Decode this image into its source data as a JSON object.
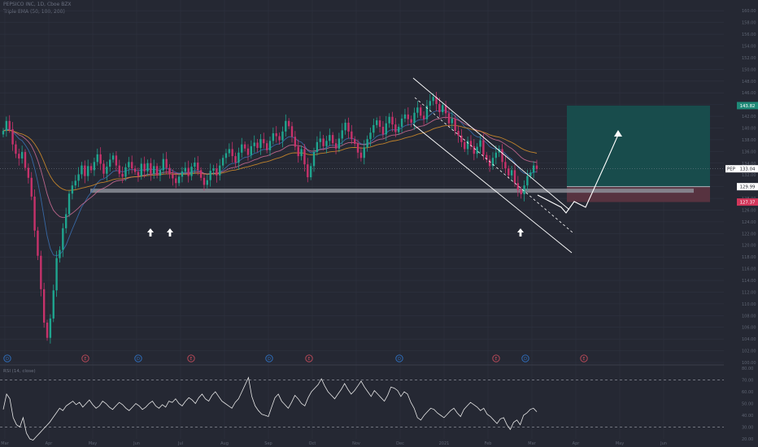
{
  "header": {
    "title": "PEPSICO INC, 1D, Cboe BZX",
    "indicators": "Triple EMA (50, 100, 200)"
  },
  "colors": {
    "background": "#252833",
    "grid": "#2e3240",
    "up": "#1fa58f",
    "down": "#c7326b",
    "target_zone": "#174e4e",
    "stop_zone": "#5a3441",
    "support_band": "#8c8f99",
    "trend_lines": "#ffffff",
    "ema_50": "#3a6fb0",
    "ema_100": "#c96a92",
    "ema_200": "#d08c2a",
    "rsi_line": "#e8e8e8"
  },
  "price_labels": {
    "symbol": "PEP",
    "current": "133.04",
    "entry": "129.99",
    "target": "143.82",
    "stop": "127.37"
  },
  "chart_data": [
    {
      "type": "candlestick",
      "ylim": [
        100,
        161
      ],
      "y_ticks": [
        "160.00",
        "158.00",
        "156.00",
        "154.00",
        "152.00",
        "150.00",
        "148.00",
        "146.00",
        "144.00",
        "142.00",
        "140.00",
        "138.00",
        "136.00",
        "134.00",
        "132.00",
        "130.00",
        "128.00",
        "126.00",
        "124.00",
        "122.00",
        "120.00",
        "118.00",
        "116.00",
        "114.00",
        "112.00",
        "110.00",
        "108.00",
        "106.00",
        "104.00",
        "102.00",
        "100.00"
      ],
      "x_ticks": [
        "Mar",
        "Apr",
        "May",
        "Jun",
        "Jul",
        "Aug",
        "Sep",
        "Oct",
        "Nov",
        "Dec",
        "2021",
        "Feb",
        "Mar",
        "Apr",
        "May",
        "Jun"
      ],
      "current_price": 133.04,
      "support_level": 129.3,
      "annotations": {
        "support_arrows": [
          "Jun",
          "Jun",
          "Mar"
        ],
        "event_markers": [
          "D",
          "E",
          "D",
          "E",
          "D",
          "E",
          "D",
          "E",
          "D",
          "E"
        ]
      },
      "trade_setup": {
        "entry": 129.99,
        "target": 143.82,
        "stop": 127.37
      },
      "closes": [
        139.5,
        141.2,
        139.8,
        137.2,
        135.6,
        134.8,
        135.9,
        133.2,
        131.5,
        128.3,
        122.5,
        118.2,
        112.5,
        106.8,
        104.2,
        107.5,
        112.3,
        117.8,
        119.2,
        122.9,
        125.3,
        128.8,
        130.2,
        131.0,
        132.1,
        133.6,
        131.8,
        133.5,
        132.8,
        134.2,
        135.5,
        133.9,
        132.2,
        133.4,
        134.6,
        135.3,
        133.6,
        132.2,
        131.7,
        133.3,
        134.2,
        133.1,
        132.5,
        131.8,
        133.9,
        132.6,
        134.0,
        132.2,
        133.5,
        131.9,
        132.8,
        134.7,
        133.2,
        132.1,
        131.4,
        130.6,
        131.7,
        132.6,
        133.2,
        131.8,
        133.4,
        134.1,
        132.8,
        131.5,
        130.3,
        131.1,
        132.7,
        133.1,
        131.9,
        133.6,
        134.9,
        135.7,
        136.4,
        135.2,
        134.1,
        135.8,
        137.2,
        136.5,
        135.4,
        136.9,
        137.5,
        136.6,
        138.1,
        137.4,
        136.2,
        137.8,
        139.1,
        138.6,
        137.9,
        139.4,
        141.2,
        140.3,
        138.5,
        136.8,
        135.2,
        136.4,
        133.8,
        131.6,
        133.5,
        135.9,
        137.6,
        138.2,
        136.9,
        137.8,
        138.8,
        137.4,
        136.5,
        138.2,
        139.6,
        140.9,
        139.4,
        138.1,
        137.3,
        135.8,
        134.9,
        136.7,
        138.1,
        139.2,
        140.5,
        141.3,
        140.2,
        138.9,
        140.8,
        141.9,
        140.6,
        139.3,
        140.2,
        141.6,
        142.3,
        141.5,
        140.9,
        142.6,
        143.5,
        142.1,
        141.5,
        143.8,
        144.6,
        145.3,
        144.1,
        142.7,
        143.9,
        142.5,
        140.8,
        141.6,
        139.5,
        138.7,
        137.6,
        136.4,
        137.8,
        136.9,
        135.6,
        136.8,
        137.9,
        135.4,
        134.6,
        133.5,
        134.9,
        135.8,
        136.4,
        134.2,
        133.1,
        131.9,
        132.8,
        130.6,
        129.4,
        128.7,
        130.2,
        131.8,
        132.4,
        133.6,
        133.0
      ]
    },
    {
      "type": "line",
      "title": "RSI (14, close)",
      "ylim": [
        20,
        80
      ],
      "y_ticks": [
        "80.00",
        "70.00",
        "60.00",
        "50.00",
        "40.00",
        "30.00",
        "20.00"
      ],
      "bands": [
        70,
        30
      ],
      "values": [
        45,
        58,
        54,
        38,
        32,
        30,
        38,
        25,
        20,
        19,
        22,
        25,
        28,
        31,
        34,
        38,
        42,
        46,
        44,
        48,
        50,
        52,
        49,
        51,
        47,
        50,
        53,
        49,
        46,
        48,
        52,
        50,
        47,
        45,
        48,
        51,
        49,
        46,
        44,
        47,
        50,
        48,
        45,
        47,
        50,
        52,
        48,
        46,
        49,
        47,
        52,
        51,
        54,
        50,
        48,
        52,
        55,
        53,
        50,
        55,
        58,
        54,
        52,
        57,
        60,
        56,
        52,
        50,
        48,
        46,
        51,
        54,
        60,
        66,
        72,
        56,
        48,
        44,
        41,
        40,
        39,
        47,
        55,
        58,
        52,
        49,
        46,
        51,
        57,
        54,
        50,
        48,
        55,
        60,
        63,
        66,
        71,
        65,
        60,
        57,
        54,
        58,
        62,
        67,
        62,
        58,
        61,
        65,
        69,
        64,
        60,
        56,
        61,
        58,
        55,
        52,
        57,
        64,
        63,
        61,
        56,
        60,
        58,
        51,
        46,
        38,
        36,
        40,
        43,
        46,
        45,
        42,
        40,
        38,
        41,
        44,
        46,
        42,
        39,
        45,
        48,
        51,
        49,
        47,
        44,
        46,
        41,
        39,
        36,
        33,
        37,
        38,
        32,
        28,
        34,
        36,
        32,
        40,
        42,
        45,
        46,
        43
      ]
    }
  ]
}
